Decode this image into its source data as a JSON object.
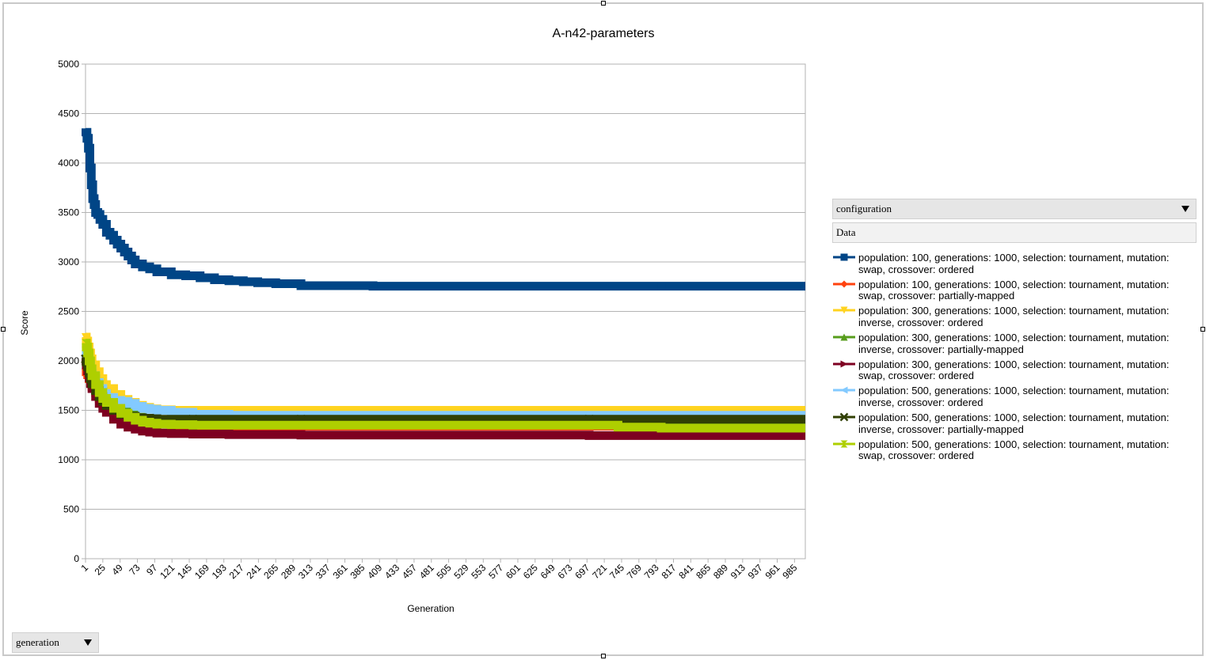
{
  "chart_data": {
    "type": "line",
    "title": "A-n42-parameters",
    "xlabel": "Generation",
    "ylabel": "Score",
    "ylim": [
      0,
      5000
    ],
    "yticks": [
      0,
      500,
      1000,
      1500,
      2000,
      2500,
      3000,
      3500,
      4000,
      4500,
      5000
    ],
    "xlim": [
      1,
      1000
    ],
    "xticks": [
      1,
      25,
      49,
      73,
      97,
      121,
      145,
      169,
      193,
      217,
      241,
      265,
      289,
      313,
      337,
      361,
      385,
      409,
      433,
      457,
      481,
      505,
      529,
      553,
      577,
      601,
      625,
      649,
      673,
      697,
      721,
      745,
      769,
      793,
      817,
      841,
      865,
      889,
      913,
      937,
      961,
      985
    ],
    "grid": "horizontal",
    "legend_position": "right",
    "series": [
      {
        "name": "population: 100, generations: 1000, selection: tournament, mutation: swap, crossover: ordered",
        "color": "#004586",
        "marker": "square",
        "x": [
          1,
          3,
          5,
          7,
          9,
          11,
          13,
          15,
          18,
          21,
          25,
          30,
          35,
          40,
          45,
          50,
          55,
          60,
          65,
          70,
          80,
          90,
          100,
          120,
          140,
          160,
          180,
          200,
          220,
          240,
          265,
          300,
          400,
          600,
          800,
          1000
        ],
        "y": [
          4310,
          4250,
          4150,
          3950,
          3780,
          3640,
          3580,
          3500,
          3480,
          3430,
          3380,
          3300,
          3270,
          3220,
          3180,
          3140,
          3100,
          3060,
          3020,
          2980,
          2950,
          2930,
          2900,
          2870,
          2860,
          2840,
          2820,
          2810,
          2800,
          2790,
          2780,
          2760,
          2755,
          2755,
          2755,
          2755
        ]
      },
      {
        "name": "population: 100, generations: 1000, selection: tournament, mutation: swap, crossover: partially-mapped",
        "color": "#ff420e",
        "marker": "diamond",
        "x": [
          1,
          2,
          4,
          6,
          8,
          10,
          15,
          20,
          25,
          30,
          40,
          50,
          60,
          70,
          80,
          90,
          100,
          120,
          150,
          200,
          300,
          500,
          700,
          1000
        ],
        "y": [
          1920,
          1890,
          1860,
          1820,
          1780,
          1740,
          1680,
          1620,
          1580,
          1550,
          1510,
          1470,
          1430,
          1400,
          1380,
          1370,
          1360,
          1350,
          1345,
          1340,
          1340,
          1340,
          1340,
          1340
        ]
      },
      {
        "name": "population: 300, generations: 1000, selection: tournament, mutation: inverse, crossover: ordered",
        "color": "#ffd320",
        "marker": "triangle-down",
        "x": [
          1,
          2,
          4,
          6,
          8,
          10,
          15,
          20,
          25,
          30,
          40,
          50,
          60,
          70,
          80,
          90,
          100,
          120,
          150,
          200,
          300,
          500,
          700,
          1000
        ],
        "y": [
          2240,
          2200,
          2140,
          2080,
          2020,
          1960,
          1890,
          1820,
          1760,
          1720,
          1660,
          1610,
          1580,
          1550,
          1530,
          1515,
          1505,
          1500,
          1500,
          1500,
          1500,
          1500,
          1500,
          1500
        ]
      },
      {
        "name": "population: 300, generations: 1000, selection: tournament, mutation: inverse, crossover: partially-mapped",
        "color": "#579d1c",
        "marker": "triangle-up",
        "x": [
          1,
          2,
          4,
          6,
          8,
          10,
          15,
          20,
          25,
          30,
          40,
          50,
          60,
          70,
          80,
          90,
          100,
          120,
          150,
          200,
          300,
          500,
          700,
          1000
        ],
        "y": [
          2050,
          2020,
          1970,
          1920,
          1870,
          1820,
          1750,
          1690,
          1640,
          1600,
          1550,
          1500,
          1460,
          1430,
          1410,
          1400,
          1395,
          1390,
          1390,
          1390,
          1390,
          1390,
          1390,
          1390
        ]
      },
      {
        "name": "population: 300, generations: 1000, selection: tournament, mutation: swap, crossover: ordered",
        "color": "#7e0021",
        "marker": "triangle-right",
        "x": [
          1,
          2,
          4,
          6,
          8,
          10,
          15,
          20,
          25,
          30,
          40,
          50,
          60,
          70,
          80,
          90,
          100,
          120,
          150,
          200,
          300,
          500,
          700,
          1000
        ],
        "y": [
          2000,
          1960,
          1900,
          1830,
          1770,
          1720,
          1640,
          1570,
          1520,
          1480,
          1410,
          1360,
          1330,
          1310,
          1290,
          1280,
          1270,
          1265,
          1260,
          1255,
          1250,
          1250,
          1245,
          1245
        ]
      },
      {
        "name": "population: 500, generations: 1000, selection: tournament, mutation: inverse, crossover: ordered",
        "color": "#83caff",
        "marker": "triangle-left",
        "x": [
          1,
          2,
          4,
          6,
          8,
          10,
          15,
          20,
          25,
          30,
          40,
          50,
          60,
          70,
          80,
          90,
          100,
          120,
          150,
          200,
          300,
          500,
          700,
          1000
        ],
        "y": [
          2100,
          2070,
          2020,
          1960,
          1900,
          1850,
          1780,
          1720,
          1670,
          1630,
          1600,
          1590,
          1570,
          1540,
          1520,
          1510,
          1500,
          1480,
          1460,
          1450,
          1450,
          1450,
          1450,
          1450
        ]
      },
      {
        "name": "population: 500, generations: 1000, selection: tournament, mutation: inverse, crossover: partially-mapped",
        "color": "#314004",
        "marker": "cross",
        "x": [
          1,
          2,
          4,
          6,
          8,
          10,
          15,
          20,
          25,
          30,
          40,
          50,
          60,
          70,
          80,
          90,
          100,
          120,
          150,
          200,
          300,
          500,
          700,
          1000
        ],
        "y": [
          2020,
          1990,
          1940,
          1880,
          1820,
          1770,
          1700,
          1640,
          1590,
          1550,
          1500,
          1460,
          1440,
          1425,
          1420,
          1415,
          1410,
          1410,
          1410,
          1410,
          1410,
          1410,
          1410,
          1410
        ]
      },
      {
        "name": "population: 500, generations: 1000, selection: tournament, mutation: swap, crossover: ordered",
        "color": "#aecf00",
        "marker": "hourglass",
        "x": [
          1,
          2,
          4,
          6,
          8,
          10,
          15,
          20,
          25,
          30,
          40,
          50,
          60,
          70,
          80,
          90,
          100,
          120,
          150,
          200,
          300,
          500,
          700,
          740,
          800,
          1000
        ],
        "y": [
          2180,
          2140,
          2080,
          2000,
          1920,
          1850,
          1760,
          1680,
          1620,
          1580,
          1520,
          1470,
          1430,
          1400,
          1380,
          1370,
          1360,
          1355,
          1350,
          1350,
          1350,
          1350,
          1350,
          1330,
          1320,
          1320
        ]
      }
    ]
  },
  "pivot": {
    "column_field": "configuration",
    "data_field": "Data",
    "row_field": "generation"
  }
}
